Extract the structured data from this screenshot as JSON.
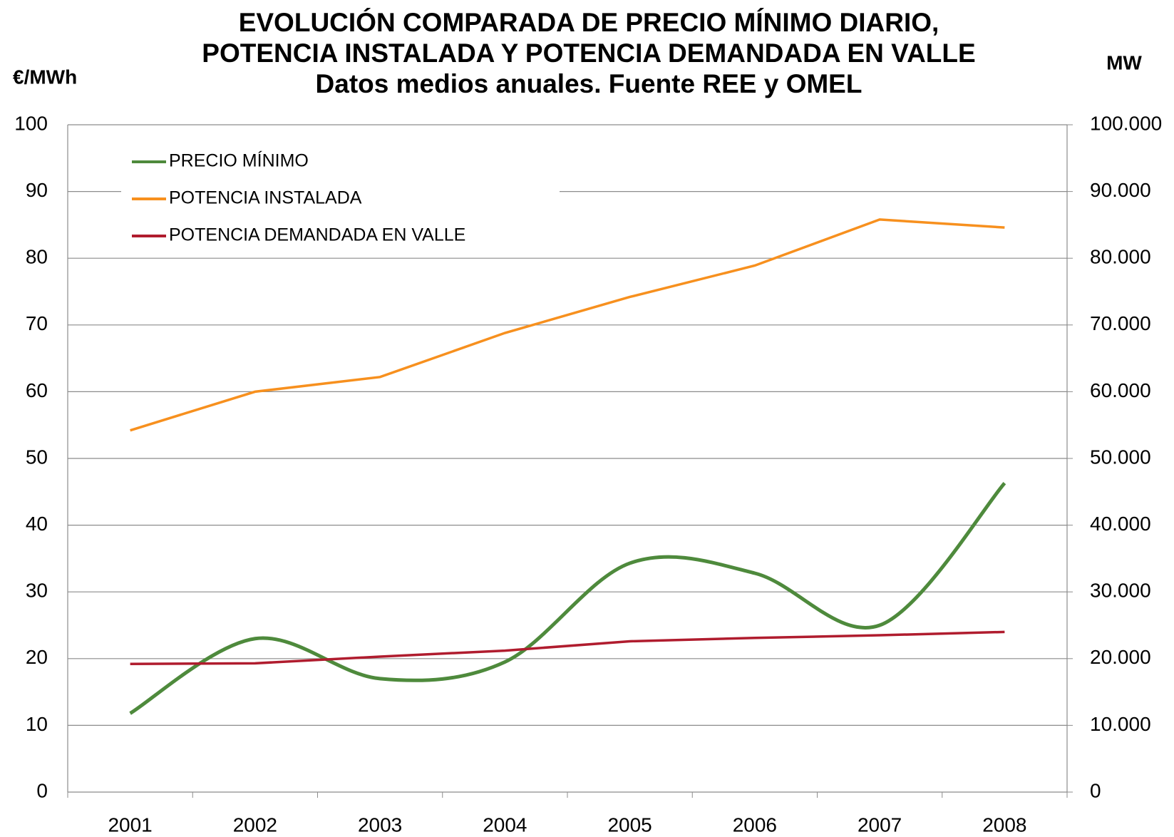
{
  "chart_data": {
    "type": "line",
    "title": [
      "EVOLUCIÓN COMPARADA DE PRECIO MÍNIMO DIARIO,",
      "POTENCIA INSTALADA Y POTENCIA  DEMANDADA EN VALLE"
    ],
    "subtitle": "Datos medios anuales. Fuente REE y OMEL",
    "ylabel": "€/MWh",
    "y2label": "MW",
    "categories": [
      "2001",
      "2002",
      "2003",
      "2004",
      "2005",
      "2006",
      "2007",
      "2008"
    ],
    "series": [
      {
        "name": "PRECIO MÍNIMO",
        "color": "#4e8a3c",
        "smooth": true,
        "values": [
          11.8,
          23,
          17,
          19.5,
          34.3,
          32.8,
          25,
          46.3
        ]
      },
      {
        "name": "POTENCIA INSTALADA",
        "color": "#f7901e",
        "axis": "y2",
        "values": [
          54200,
          60000,
          62200,
          68800,
          74200,
          78900,
          85800,
          84600
        ]
      },
      {
        "name": "POTENCIA DEMANDADA EN VALLE",
        "color": "#b01c2e",
        "axis": "y2",
        "values": [
          19200,
          19300,
          20300,
          21200,
          22600,
          23100,
          23500,
          24000
        ]
      }
    ],
    "ylim": [
      0,
      100
    ],
    "yticks": [
      0,
      10,
      20,
      30,
      40,
      50,
      60,
      70,
      80,
      90,
      100
    ],
    "y2lim": [
      0,
      100000
    ],
    "y2ticks": [
      0,
      {
        "value": 10000,
        "label": "10.000"
      },
      {
        "value": 20000,
        "label": "20.000"
      },
      {
        "value": 30000,
        "label": "30.000"
      },
      {
        "value": 40000,
        "label": "40.000"
      },
      {
        "value": 50000,
        "label": "50.000"
      },
      {
        "value": 60000,
        "label": "60.000"
      },
      {
        "value": 70000,
        "label": "70.000"
      },
      {
        "value": 80000,
        "label": "80.000"
      },
      {
        "value": 90000,
        "label": "90.000"
      },
      {
        "value": 100000,
        "label": "100.000"
      }
    ],
    "grid": true,
    "legend": "top-left"
  }
}
